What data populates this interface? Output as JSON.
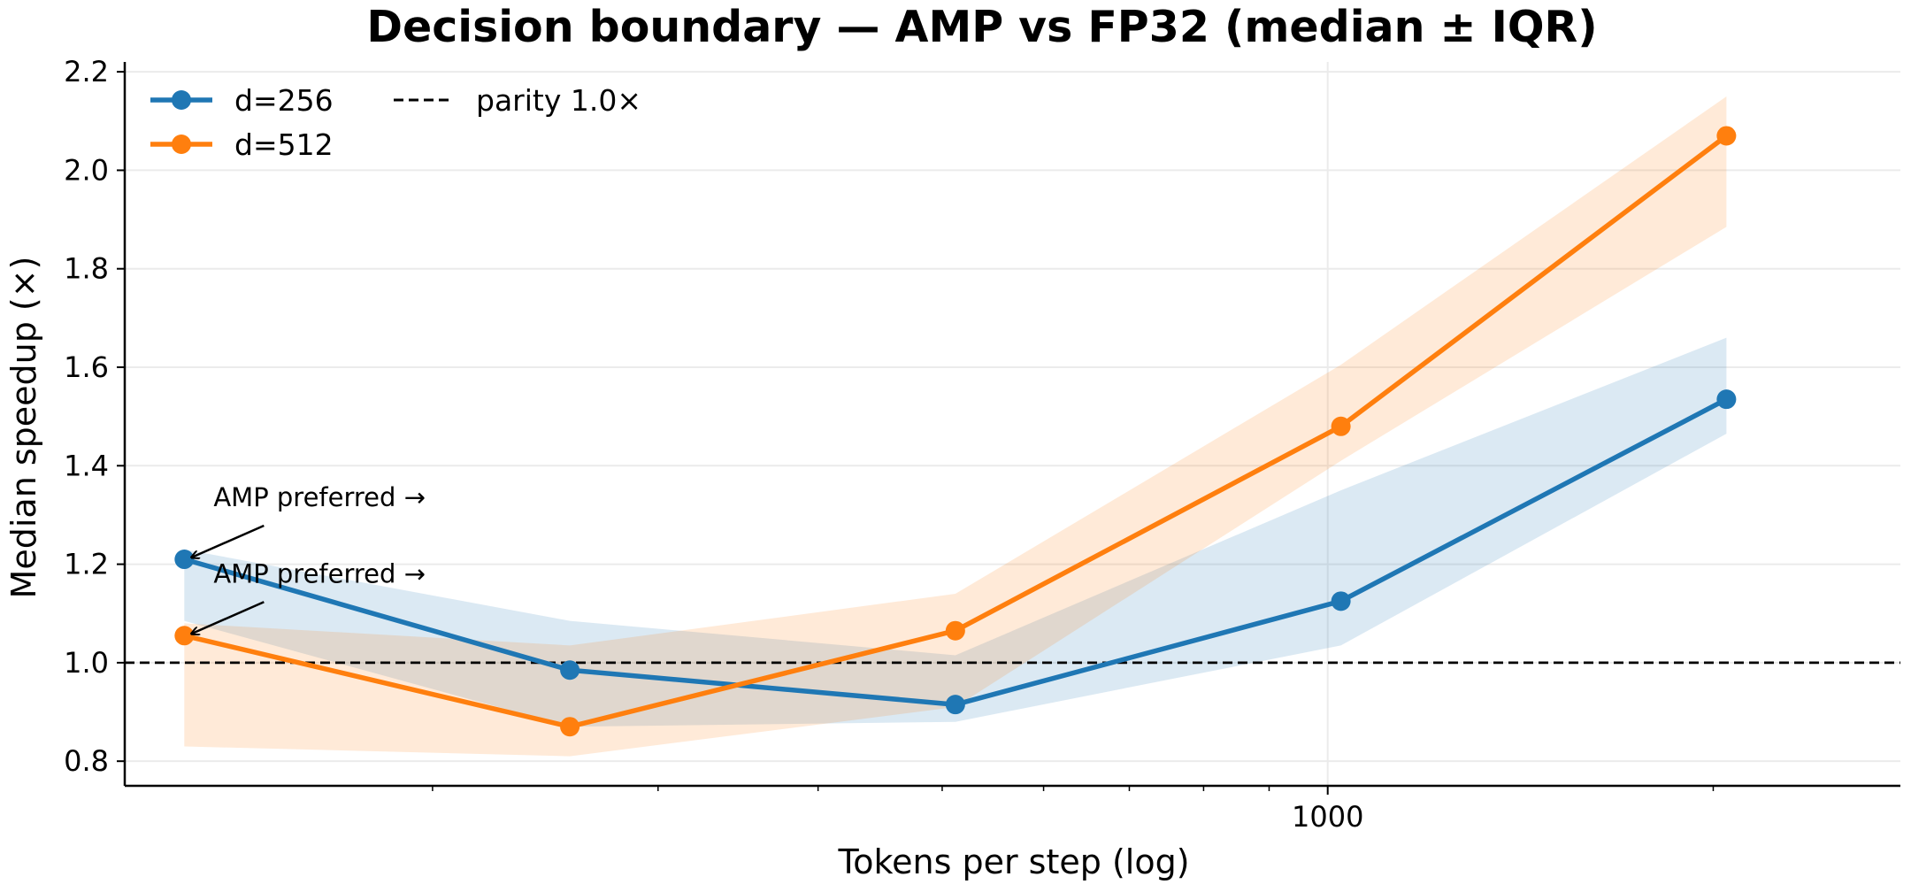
{
  "chart_data": {
    "type": "line",
    "title": "Decision boundary — AMP vs FP32 (median ± IQR)",
    "xlabel": "Tokens per step (log)",
    "ylabel": "Median speedup (×)",
    "x_scale": "log",
    "xlim": [
      115,
      2800
    ],
    "ylim": [
      0.75,
      2.22
    ],
    "x_major_ticks": [
      1000
    ],
    "x_major_tick_labels": [
      "1000"
    ],
    "x_minor_ticks": [
      200,
      300,
      400,
      500,
      600,
      700,
      800,
      900,
      2000
    ],
    "y_ticks": [
      0.8,
      1.0,
      1.2,
      1.4,
      1.6,
      1.8,
      2.0,
      2.2
    ],
    "y_tick_labels": [
      "0.8",
      "1.0",
      "1.2",
      "1.4",
      "1.6",
      "1.8",
      "2.0",
      "2.2"
    ],
    "grid": true,
    "legend_position": "upper-left",
    "x": [
      128,
      256,
      512,
      1024,
      2048
    ],
    "series": [
      {
        "name": "d=256",
        "color": "#1f77b4",
        "values": [
          1.21,
          0.985,
          0.915,
          1.125,
          1.535
        ],
        "iqr_low": [
          1.085,
          0.87,
          0.88,
          1.035,
          1.465
        ],
        "iqr_high": [
          1.23,
          1.085,
          1.015,
          1.35,
          1.66
        ]
      },
      {
        "name": "d=512",
        "color": "#ff7f0e",
        "values": [
          1.055,
          0.87,
          1.065,
          1.48,
          2.07
        ],
        "iqr_low": [
          0.83,
          0.81,
          0.91,
          1.41,
          1.885
        ],
        "iqr_high": [
          1.08,
          1.035,
          1.14,
          1.605,
          2.15
        ]
      }
    ],
    "reference_line": {
      "y": 1.0,
      "label": "parity 1.0×",
      "color": "#000000",
      "style": "dashed"
    },
    "annotations": [
      {
        "text": "AMP preferred →",
        "series": "d=256",
        "x": 128,
        "y": 1.21
      },
      {
        "text": "AMP preferred →",
        "series": "d=512",
        "x": 128,
        "y": 1.055
      }
    ]
  }
}
